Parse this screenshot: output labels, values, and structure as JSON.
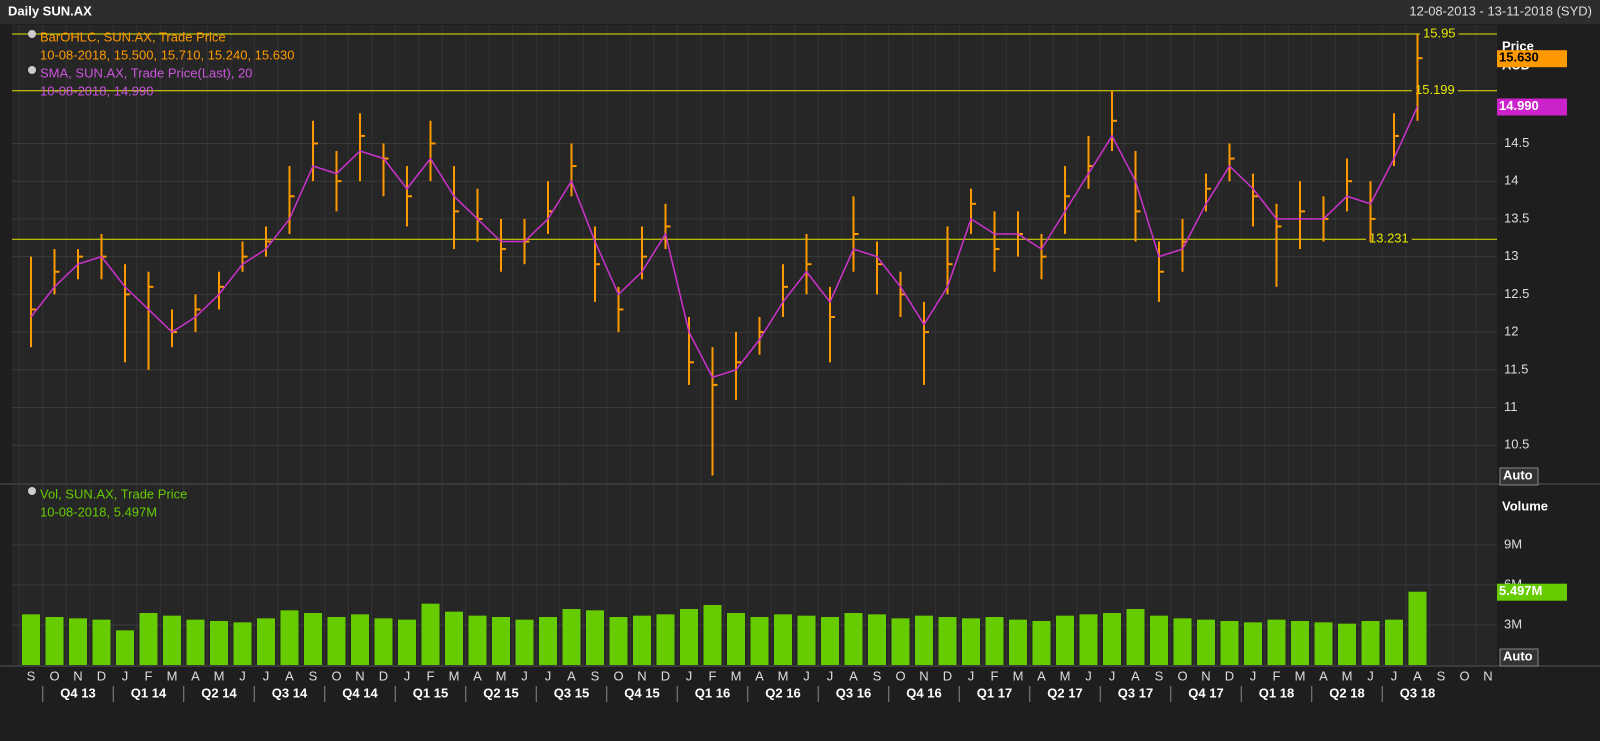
{
  "header": {
    "title": "Daily SUN.AX",
    "range": "12-08-2013 - 13-11-2018 (SYD)"
  },
  "chart_data": [
    {
      "type": "ohlc",
      "legend": [
        "BarOHLC, SUN.AX, Trade Price",
        "10-08-2018, 15.500, 15.710, 15.240, 15.630",
        "SMA, SUN.AX, Trade Price(Last),  20",
        "10-08-2018, 14.990"
      ],
      "axis_title": "Price",
      "currency": "AUD",
      "scale_mode": "Auto",
      "categories": [
        "S",
        "O",
        "N",
        "D",
        "J",
        "F",
        "M",
        "A",
        "M",
        "J",
        "J",
        "A",
        "S",
        "O",
        "N",
        "D",
        "J",
        "F",
        "M",
        "A",
        "M",
        "J",
        "J",
        "A",
        "S",
        "O",
        "N",
        "D",
        "J",
        "F",
        "M",
        "A",
        "M",
        "J",
        "J",
        "A",
        "S",
        "O",
        "N",
        "D",
        "J",
        "F",
        "M",
        "A",
        "M",
        "J",
        "J",
        "A",
        "S",
        "O",
        "N",
        "D",
        "J",
        "F",
        "M",
        "A",
        "M",
        "J",
        "J",
        "A",
        "S",
        "O",
        "N"
      ],
      "quarters": [
        "Q4 13",
        "Q1 14",
        "Q2 14",
        "Q3 14",
        "Q4 14",
        "Q1 15",
        "Q2 15",
        "Q3 15",
        "Q4 15",
        "Q1 16",
        "Q2 16",
        "Q3 16",
        "Q4 16",
        "Q1 17",
        "Q2 17",
        "Q3 17",
        "Q4 17",
        "Q1 18",
        "Q2 18",
        "Q3 18"
      ],
      "series": [
        {
          "name": "High",
          "color": "#ff9900",
          "values": [
            13.0,
            13.1,
            13.1,
            13.3,
            12.9,
            12.8,
            12.3,
            12.5,
            12.8,
            13.2,
            13.4,
            14.2,
            14.8,
            14.4,
            14.9,
            14.5,
            14.2,
            14.8,
            14.2,
            13.9,
            13.5,
            13.5,
            14.0,
            14.5,
            13.4,
            12.6,
            13.4,
            13.7,
            12.2,
            11.8,
            12.0,
            12.2,
            12.9,
            13.3,
            12.6,
            13.8,
            13.2,
            12.8,
            12.4,
            13.4,
            13.9,
            13.6,
            13.6,
            13.3,
            14.2,
            14.6,
            15.2,
            14.4,
            13.2,
            13.5,
            14.1,
            14.5,
            14.1,
            13.7,
            14.0,
            13.8,
            14.3,
            14.0,
            14.9,
            15.95,
            null,
            null,
            null
          ]
        },
        {
          "name": "Low",
          "color": "#ff9900",
          "values": [
            11.8,
            12.5,
            12.7,
            12.7,
            11.6,
            11.5,
            11.8,
            12.0,
            12.3,
            12.8,
            13.0,
            13.3,
            14.0,
            13.6,
            14.0,
            13.8,
            13.4,
            14.0,
            13.1,
            13.2,
            12.8,
            12.9,
            13.3,
            13.8,
            12.4,
            12.0,
            12.7,
            13.1,
            11.3,
            10.1,
            11.1,
            11.7,
            12.2,
            12.5,
            11.6,
            12.8,
            12.5,
            12.2,
            11.3,
            12.5,
            13.3,
            12.8,
            13.0,
            12.7,
            13.3,
            13.9,
            14.4,
            13.2,
            12.4,
            12.8,
            13.6,
            14.0,
            13.4,
            12.6,
            13.1,
            13.2,
            13.6,
            13.2,
            14.2,
            14.8,
            null,
            null,
            null
          ]
        },
        {
          "name": "Close",
          "color": "#ff9900",
          "values": [
            12.3,
            12.8,
            13.0,
            13.0,
            12.5,
            12.6,
            12.0,
            12.3,
            12.6,
            13.0,
            13.2,
            13.8,
            14.5,
            14.0,
            14.6,
            14.3,
            13.8,
            14.5,
            13.6,
            13.5,
            13.1,
            13.2,
            13.6,
            14.2,
            12.9,
            12.3,
            13.0,
            13.4,
            11.6,
            11.3,
            11.6,
            12.0,
            12.6,
            12.9,
            12.2,
            13.3,
            12.9,
            12.5,
            12.0,
            12.9,
            13.7,
            13.1,
            13.3,
            13.0,
            13.8,
            14.2,
            14.8,
            13.6,
            12.8,
            13.2,
            13.9,
            14.3,
            13.8,
            13.4,
            13.6,
            13.5,
            14.0,
            13.5,
            14.6,
            15.63,
            null,
            null,
            null
          ]
        },
        {
          "name": "SMA",
          "color": "#cc33cc",
          "values": [
            12.2,
            12.6,
            12.9,
            13.0,
            12.6,
            12.3,
            12.0,
            12.2,
            12.5,
            12.9,
            13.1,
            13.5,
            14.2,
            14.1,
            14.4,
            14.3,
            13.9,
            14.3,
            13.8,
            13.5,
            13.2,
            13.2,
            13.5,
            14.0,
            13.2,
            12.5,
            12.8,
            13.3,
            12.0,
            11.4,
            11.5,
            11.9,
            12.4,
            12.8,
            12.4,
            13.1,
            13.0,
            12.6,
            12.1,
            12.6,
            13.5,
            13.3,
            13.3,
            13.1,
            13.6,
            14.1,
            14.6,
            14.0,
            13.0,
            13.1,
            13.7,
            14.2,
            13.9,
            13.5,
            13.5,
            13.5,
            13.8,
            13.7,
            14.3,
            14.99,
            null,
            null,
            null
          ]
        }
      ],
      "last_close": {
        "value": 15.63,
        "label": "15.630"
      },
      "last_sma": {
        "value": 14.99,
        "label": "14.990"
      },
      "hlines": [
        15.95,
        15.199,
        13.231
      ],
      "ylim": [
        10,
        16.07
      ],
      "yticks": [
        10.5,
        11,
        11.5,
        12,
        12.5,
        13,
        13.5,
        14,
        14.5
      ],
      "grid": true
    },
    {
      "type": "bar",
      "legend": [
        "Vol, SUN.AX, Trade Price",
        "10-08-2018, 5.497M"
      ],
      "axis_title": "Volume",
      "scale_mode": "Auto",
      "color": "#66cc00",
      "values": [
        3.8,
        3.6,
        3.5,
        3.4,
        2.6,
        3.9,
        3.7,
        3.4,
        3.3,
        3.2,
        3.5,
        4.1,
        3.9,
        3.6,
        3.8,
        3.5,
        3.4,
        4.6,
        4.0,
        3.7,
        3.6,
        3.4,
        3.6,
        4.2,
        4.1,
        3.6,
        3.7,
        3.8,
        4.2,
        4.5,
        3.9,
        3.6,
        3.8,
        3.7,
        3.6,
        3.9,
        3.8,
        3.5,
        3.7,
        3.6,
        3.5,
        3.6,
        3.4,
        3.3,
        3.7,
        3.8,
        3.9,
        4.2,
        3.7,
        3.5,
        3.4,
        3.3,
        3.2,
        3.4,
        3.3,
        3.2,
        3.1,
        3.3,
        3.4,
        5.497,
        null,
        null,
        null
      ],
      "last_value": {
        "value": 5.497,
        "label": "5.497M"
      },
      "ylim": [
        0,
        13.5
      ],
      "yticks": [
        {
          "value": 3,
          "label": "3M"
        },
        {
          "value": 6,
          "label": "6M"
        },
        {
          "value": 9,
          "label": "9M"
        }
      ],
      "grid": true
    }
  ]
}
